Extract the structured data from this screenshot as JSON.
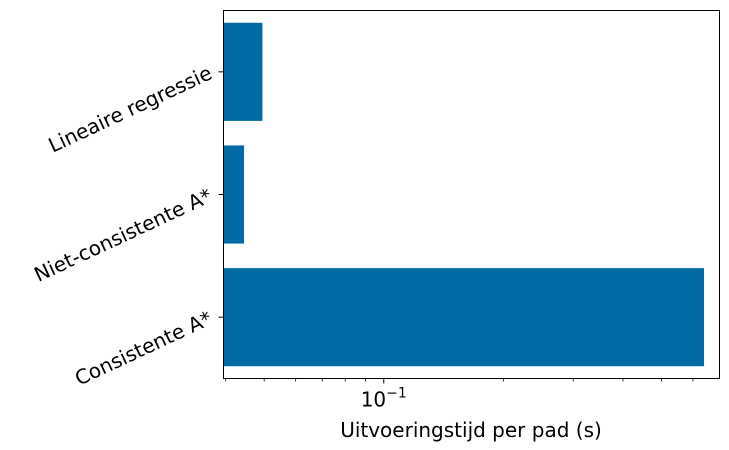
{
  "chart_data": {
    "type": "bar",
    "orientation": "horizontal",
    "categories": [
      "Consistente A*",
      "Niet-consistente A*",
      "Lineaire regressie"
    ],
    "values": [
      0.64,
      0.0445,
      0.0495
    ],
    "xlabel": "Uitvoeringstijd per pad (s)",
    "ylabel": "",
    "xscale": "log",
    "xlim": [
      0.0395,
      0.7
    ],
    "major_ticks": [
      {
        "value": 0.1,
        "base": "10",
        "exponent": "−1"
      }
    ],
    "minor_ticks": [
      0.04,
      0.05,
      0.06,
      0.07,
      0.08,
      0.09,
      0.2,
      0.3,
      0.4,
      0.5,
      0.6
    ],
    "bar_color": "#006BA4",
    "grid": false
  }
}
